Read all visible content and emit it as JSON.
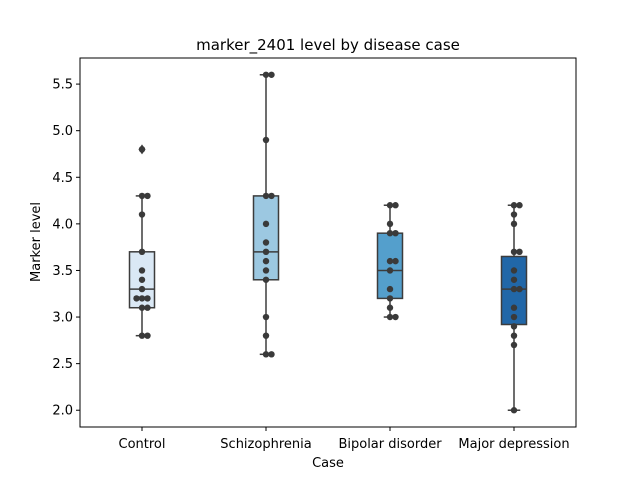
{
  "chart_data": {
    "type": "boxplot",
    "title": "marker_2401 level by disease case",
    "xlabel": "Case",
    "ylabel": "Marker level",
    "categories": [
      "Control",
      "Schizophrenia",
      "Bipolar disorder",
      "Major depression"
    ],
    "ylim": [
      1.82,
      5.78
    ],
    "yticks": [
      "2.0",
      "2.5",
      "3.0",
      "3.5",
      "4.0",
      "4.5",
      "5.0",
      "5.5"
    ],
    "grid": false,
    "legend": "none",
    "colors": [
      "#dae8f5",
      "#9cc8e1",
      "#549fcc",
      "#2167a8"
    ],
    "boxes": [
      {
        "q1": 3.1,
        "median": 3.3,
        "q3": 3.7,
        "whisker_low": 2.8,
        "whisker_high": 4.3,
        "outliers": [
          4.8
        ]
      },
      {
        "q1": 3.4,
        "median": 3.7,
        "q3": 4.3,
        "whisker_low": 2.6,
        "whisker_high": 5.6,
        "outliers": []
      },
      {
        "q1": 3.2,
        "median": 3.5,
        "q3": 3.9,
        "whisker_low": 3.0,
        "whisker_high": 4.2,
        "outliers": []
      },
      {
        "q1": 2.92,
        "median": 3.3,
        "q3": 3.65,
        "whisker_low": 2.0,
        "whisker_high": 4.2,
        "outliers": []
      }
    ],
    "points": [
      [
        4.8,
        4.3,
        4.3,
        4.1,
        3.7,
        3.5,
        3.4,
        3.3,
        3.2,
        3.2,
        3.2,
        3.1,
        3.1,
        2.8,
        2.8
      ],
      [
        5.6,
        5.6,
        4.9,
        4.3,
        4.3,
        4.0,
        3.8,
        3.7,
        3.6,
        3.5,
        3.4,
        3.0,
        2.8,
        2.6,
        2.6
      ],
      [
        4.2,
        4.2,
        4.0,
        3.9,
        3.9,
        3.6,
        3.6,
        3.5,
        3.3,
        3.2,
        3.1,
        3.0,
        3.0
      ],
      [
        4.2,
        4.2,
        4.1,
        4.0,
        3.7,
        3.7,
        3.5,
        3.4,
        3.3,
        3.3,
        3.1,
        3.0,
        2.9,
        2.8,
        2.7,
        2.0
      ]
    ]
  }
}
